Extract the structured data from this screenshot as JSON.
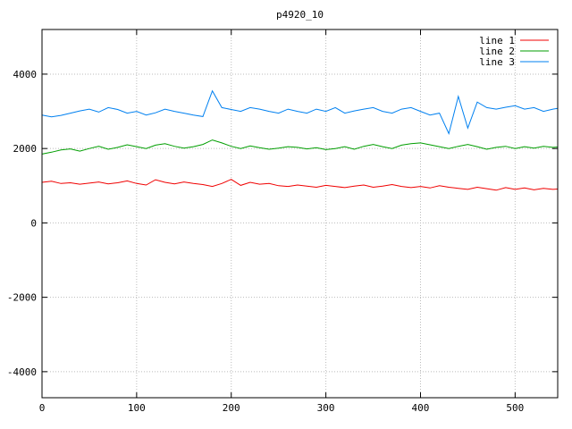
{
  "chart_data": {
    "type": "line",
    "title": "p4920_10",
    "xlabel": "",
    "ylabel": "",
    "xlim": [
      0,
      545
    ],
    "ylim": [
      -4700,
      5200
    ],
    "xticks": [
      0,
      100,
      200,
      300,
      400,
      500
    ],
    "yticks": [
      -4000,
      -2000,
      0,
      2000,
      4000
    ],
    "grid": true,
    "grid_color": "#bbbbbb",
    "border_color": "#000000",
    "background_color": "#ffffff",
    "text_color": "#000000",
    "legend_position": "top-right",
    "x": [
      0,
      10,
      20,
      30,
      40,
      50,
      60,
      70,
      80,
      90,
      100,
      110,
      120,
      130,
      140,
      150,
      160,
      170,
      180,
      190,
      200,
      210,
      220,
      230,
      240,
      250,
      260,
      270,
      280,
      290,
      300,
      310,
      320,
      330,
      340,
      350,
      360,
      370,
      380,
      390,
      400,
      410,
      420,
      430,
      440,
      450,
      460,
      470,
      480,
      490,
      500,
      510,
      520,
      530,
      540,
      545
    ],
    "series": [
      {
        "name": "line 1",
        "color": "#f00000",
        "values": [
          1090,
          1120,
          1060,
          1080,
          1040,
          1070,
          1100,
          1050,
          1080,
          1130,
          1060,
          1020,
          1160,
          1090,
          1050,
          1100,
          1060,
          1030,
          980,
          1060,
          1170,
          1010,
          1090,
          1040,
          1060,
          1000,
          980,
          1020,
          990,
          960,
          1010,
          980,
          950,
          990,
          1020,
          960,
          990,
          1030,
          980,
          950,
          980,
          940,
          1000,
          960,
          930,
          900,
          960,
          920,
          880,
          950,
          900,
          940,
          890,
          930,
          900,
          910
        ]
      },
      {
        "name": "line 2",
        "color": "#009e00",
        "values": [
          1850,
          1900,
          1960,
          1990,
          1930,
          2000,
          2060,
          1980,
          2030,
          2100,
          2050,
          2000,
          2090,
          2130,
          2060,
          2010,
          2050,
          2110,
          2230,
          2150,
          2060,
          2000,
          2070,
          2020,
          1980,
          2010,
          2050,
          2030,
          1990,
          2020,
          1970,
          2000,
          2050,
          1980,
          2060,
          2110,
          2050,
          2000,
          2090,
          2130,
          2150,
          2100,
          2050,
          2000,
          2060,
          2110,
          2050,
          1980,
          2030,
          2060,
          2000,
          2050,
          2010,
          2060,
          2030,
          2040
        ]
      },
      {
        "name": "line 3",
        "color": "#0080f0",
        "values": [
          2900,
          2850,
          2890,
          2950,
          3010,
          3060,
          2980,
          3100,
          3050,
          2950,
          3000,
          2900,
          2960,
          3060,
          3000,
          2950,
          2900,
          2860,
          3550,
          3100,
          3050,
          3000,
          3100,
          3060,
          3000,
          2950,
          3060,
          3000,
          2950,
          3060,
          3000,
          3100,
          2950,
          3010,
          3060,
          3100,
          3000,
          2950,
          3060,
          3100,
          3000,
          2900,
          2950,
          2400,
          3400,
          2550,
          3250,
          3100,
          3060,
          3110,
          3150,
          3060,
          3100,
          3000,
          3060,
          3080
        ]
      }
    ]
  }
}
